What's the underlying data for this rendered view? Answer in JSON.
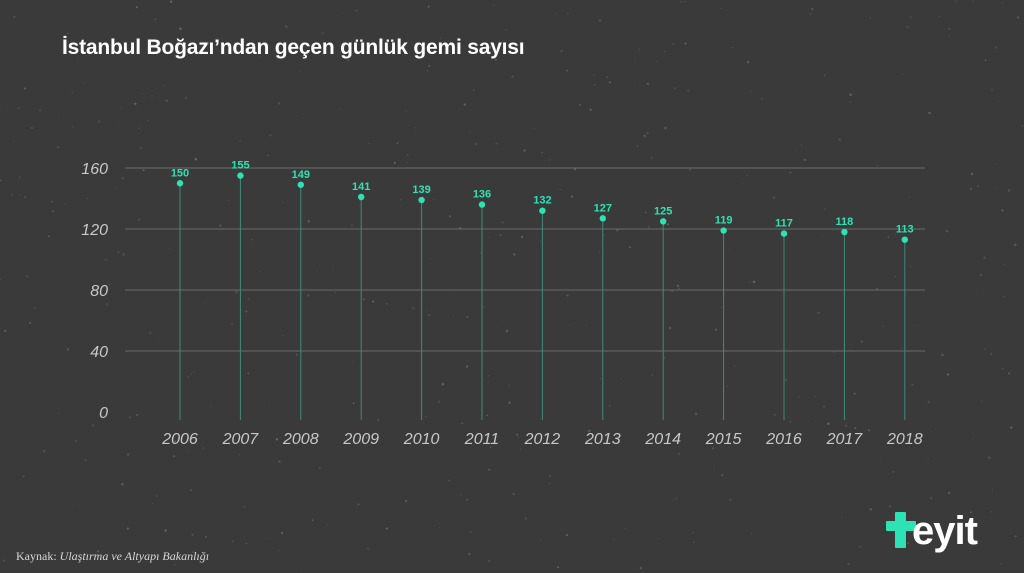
{
  "title": "İstanbul Boğazı’ndan geçen günlük gemi sayısı",
  "source": {
    "prefix": "Kaynak: ",
    "name": "Ulaştırma ve Altyapı Bakanlığı"
  },
  "logo": {
    "text": "eyit",
    "accent_color": "#2de2b4"
  },
  "colors": {
    "background": "#3a3a3a",
    "grid": "#6a6a6a",
    "stem": "#3f8c76",
    "point": "#2de2b4",
    "label": "#2de2b4",
    "axis_text": "#c8c8c8"
  },
  "chart_data": {
    "type": "scatter",
    "title": "İstanbul Boğazı’ndan geçen günlük gemi sayısı",
    "xlabel": "",
    "ylabel": "",
    "categories": [
      "2006",
      "2007",
      "2008",
      "2009",
      "2010",
      "2011",
      "2012",
      "2013",
      "2014",
      "2015",
      "2016",
      "2017",
      "2018"
    ],
    "values": [
      150,
      155,
      149,
      141,
      139,
      136,
      132,
      127,
      125,
      119,
      117,
      118,
      113
    ],
    "ylim": [
      0,
      160
    ],
    "yticks": [
      0,
      40,
      80,
      120,
      160
    ],
    "grid": true,
    "legend": "none"
  }
}
